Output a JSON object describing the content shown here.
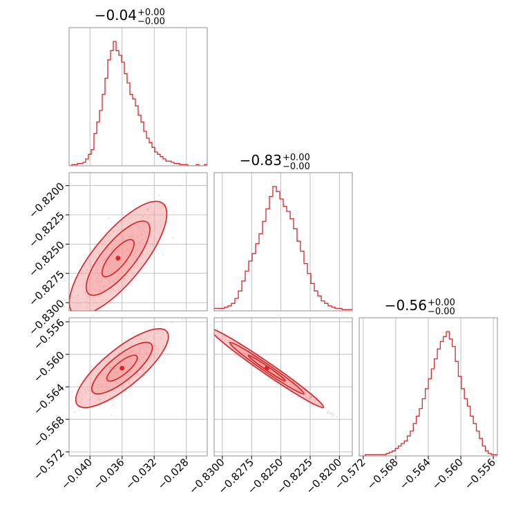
{
  "chart_data": {
    "type": "corner",
    "parameters": [
      {
        "title": "−0.04",
        "err_plus": "+0.00",
        "err_minus": "−0.00",
        "range": [
          -0.0426,
          -0.0254
        ],
        "ticks": [
          -0.04,
          -0.036,
          -0.032,
          -0.028
        ],
        "tick_labels": [
          "−0.040",
          "−0.036",
          "−0.032",
          "−0.028"
        ]
      },
      {
        "title": "−0.83",
        "err_plus": "+0.00",
        "err_minus": "−0.00",
        "range": [
          -0.8307,
          -0.8189
        ],
        "ticks": [
          -0.83,
          -0.8275,
          -0.825,
          -0.8225,
          -0.82
        ],
        "tick_labels": [
          "−0.8300",
          "−0.8275",
          "−0.8250",
          "−0.8225",
          "−0.8200"
        ]
      },
      {
        "title": "−0.56",
        "err_plus": "+0.00",
        "err_minus": "−0.00",
        "range": [
          -0.5725,
          -0.5555
        ],
        "ticks": [
          -0.572,
          -0.568,
          -0.564,
          -0.56,
          -0.556
        ],
        "tick_labels": [
          "−0.572",
          "−0.568",
          "−0.564",
          "−0.560",
          "−0.556"
        ]
      }
    ],
    "histograms": [
      {
        "param": 0,
        "heights": [
          0,
          1,
          1,
          2,
          2,
          3,
          6,
          10,
          14,
          28,
          38,
          48,
          62,
          76,
          92,
          100,
          108,
          100,
          96,
          90,
          80,
          72,
          62,
          58,
          52,
          44,
          38,
          30,
          24,
          20,
          16,
          12,
          10,
          8,
          6,
          4,
          4,
          3,
          2,
          2,
          1,
          1,
          1,
          0,
          0,
          0,
          1,
          0,
          0,
          1
        ]
      },
      {
        "param": 1,
        "heights": [
          2,
          2,
          2,
          3,
          4,
          6,
          10,
          16,
          24,
          32,
          40,
          46,
          54,
          62,
          72,
          82,
          92,
          100,
          96,
          90,
          84,
          80,
          74,
          66,
          56,
          48,
          38,
          30,
          22,
          16,
          12,
          8,
          6,
          4,
          3,
          2,
          2,
          1,
          1,
          1
        ]
      },
      {
        "param": 2,
        "heights": [
          0,
          0,
          1,
          1,
          1,
          1,
          1,
          1,
          1,
          2,
          3,
          4,
          6,
          8,
          10,
          12,
          16,
          20,
          26,
          32,
          38,
          46,
          54,
          62,
          70,
          78,
          86,
          92,
          96,
          100,
          94,
          88,
          76,
          64,
          54,
          46,
          40,
          32,
          26,
          20,
          14,
          8,
          4,
          2,
          1,
          1
        ]
      }
    ],
    "scatter_2d": [
      {
        "x_param": 0,
        "y_param": 1,
        "center": [
          -0.0365,
          -0.8262
        ],
        "sd": [
          0.002,
          0.0016
        ],
        "corr": 0.78,
        "contour_levels": [
          0.39,
          0.86,
          0.99
        ]
      },
      {
        "x_param": 0,
        "y_param": 2,
        "center": [
          -0.036,
          -0.5617
        ],
        "sd": [
          0.0019,
          0.0016
        ],
        "corr": 0.8,
        "contour_levels": [
          0.39,
          0.86,
          0.99
        ]
      },
      {
        "x_param": 1,
        "y_param": 2,
        "center": [
          -0.8262,
          -0.5617
        ],
        "sd": [
          0.0016,
          0.0016
        ],
        "corr": -0.985,
        "contour_levels": [
          0.39,
          0.86,
          0.99
        ]
      }
    ],
    "colors": {
      "main": "#d62728",
      "fill": "#f4a6a6",
      "grid": "#b0b0b0",
      "frame": "#8c8c8c"
    },
    "grid": true
  }
}
